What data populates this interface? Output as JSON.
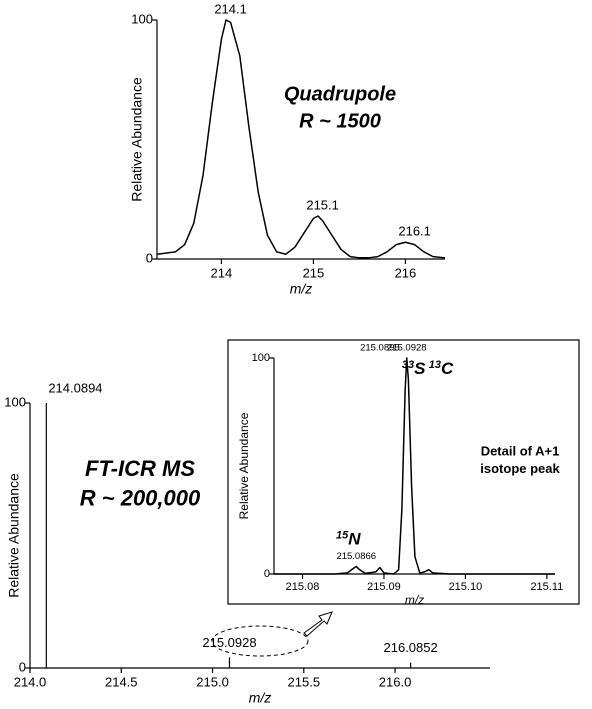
{
  "chart_data": [
    {
      "type": "line",
      "title": "Quadrupole",
      "subtitle": "R ~ 1500",
      "x_label": "m/z",
      "y_label": "Relative Abundance",
      "color": "#000000",
      "x": [
        213.3,
        213.5,
        213.6,
        213.7,
        213.8,
        213.9,
        214.0,
        214.05,
        214.1,
        214.2,
        214.3,
        214.4,
        214.5,
        214.6,
        214.7,
        214.8,
        214.9,
        215.0,
        215.05,
        215.1,
        215.2,
        215.3,
        215.4,
        215.5,
        215.6,
        215.7,
        215.8,
        215.9,
        216.0,
        216.1,
        216.2,
        216.3,
        216.43
      ],
      "values": [
        2,
        3,
        6,
        15,
        35,
        65,
        92,
        100,
        99,
        85,
        55,
        28,
        10,
        3,
        2,
        5,
        11,
        17,
        18,
        16,
        10,
        4,
        1,
        0.5,
        0.5,
        1,
        3,
        6,
        7,
        6,
        3,
        1,
        0.5
      ],
      "peak_labels": [
        214.1,
        215.1,
        216.1
      ],
      "xlim": [
        213.3,
        216.43
      ],
      "ylim": [
        0,
        100
      ],
      "xticks": [
        214,
        215,
        216
      ],
      "yticks": [
        0,
        100
      ]
    },
    {
      "type": "stem",
      "title": "FT-ICR MS",
      "subtitle": "R ~ 200,000",
      "x_label": "m/z",
      "y_label": "Relative Abundance",
      "color": "#000000",
      "x": [
        214.0894,
        215.0928,
        216.0852
      ],
      "values": [
        100,
        4,
        2
      ],
      "xlim": [
        214.0,
        216.52
      ],
      "ylim": [
        0,
        100
      ],
      "xticks": [
        {
          "value": 214.0,
          "label": "214.0"
        },
        214.5,
        {
          "value": 215.0,
          "label": "215.0"
        },
        215.5,
        {
          "value": 216.0,
          "label": "216.0"
        }
      ],
      "yticks": [
        0,
        100
      ]
    },
    {
      "type": "line",
      "title": "Detail of A+1",
      "subtitle": "isotope peak",
      "x_label": "m/z",
      "y_label": "Relative Abundance",
      "color": "#000000",
      "x": [
        215.0765,
        215.08,
        215.084,
        215.0855,
        215.0862,
        215.0866,
        215.087,
        215.0877,
        215.089,
        215.0895,
        215.09,
        215.0912,
        215.0918,
        215.0922,
        215.0926,
        215.0928,
        215.093,
        215.0934,
        215.0938,
        215.0944,
        215.095,
        215.0955,
        215.096,
        215.098,
        215.111
      ],
      "values": [
        0,
        0,
        0,
        0.5,
        2.5,
        3.5,
        2,
        0.3,
        1,
        3,
        0.5,
        0,
        2,
        30,
        85,
        100,
        90,
        40,
        8,
        0.5,
        1,
        2,
        0.5,
        0,
        0
      ],
      "peak_labels": [
        215.0866,
        215.0895,
        215.0928
      ],
      "isotopes": [
        {
          "mass": "15",
          "element": "N"
        },
        {
          "mass": "33",
          "element": "S"
        },
        {
          "mass": "13",
          "element": "C"
        }
      ],
      "xlim": [
        215.0765,
        215.111
      ],
      "ylim": [
        0,
        100
      ],
      "xticks": [
        215.08,
        215.09,
        {
          "value": 215.1,
          "label": "215.10"
        },
        215.11
      ],
      "yticks": [
        0,
        100
      ]
    }
  ]
}
